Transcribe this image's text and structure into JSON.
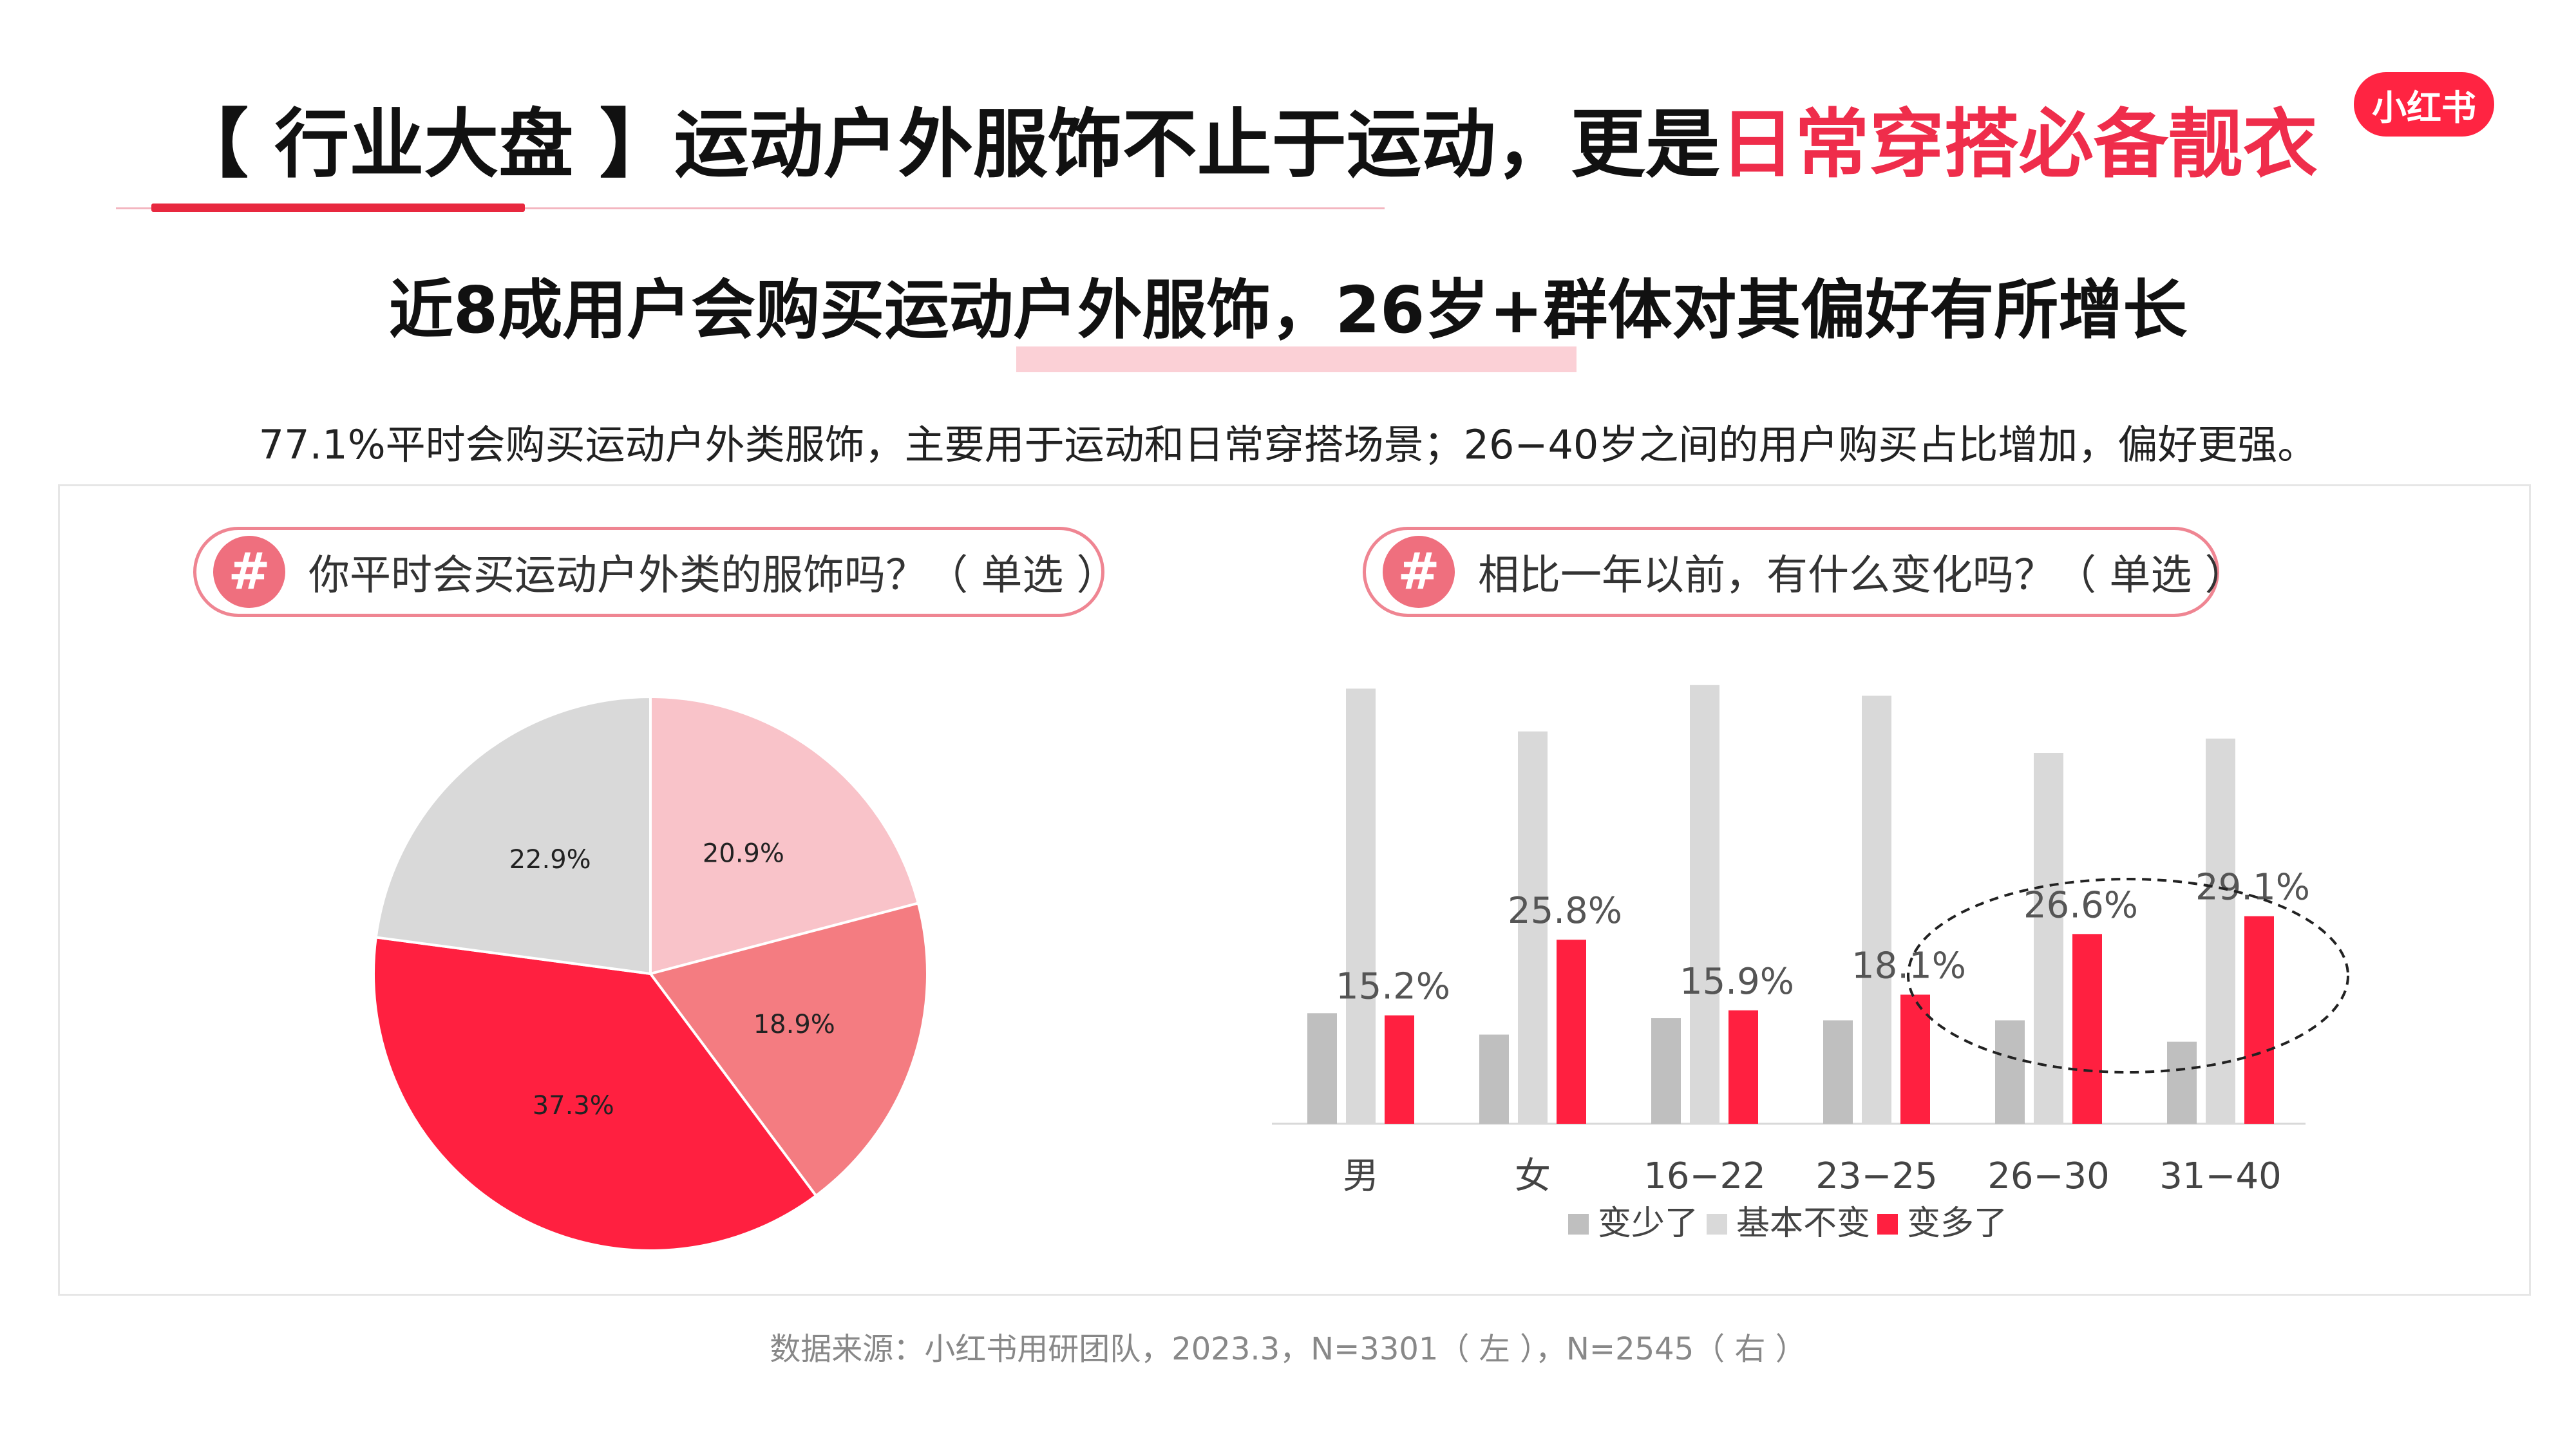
{
  "header": {
    "title_main": "【 行业大盘 】运动户外服饰不止于运动，更是",
    "title_accent": "日常穿搭必备靓衣",
    "logo_text": "小红书"
  },
  "subtitle": "近8成用户会购买运动户外服饰，26岁+群体对其偏好有所增长",
  "description": "77.1%平时会购买运动户外类服饰，主要用于运动和日常穿搭场景；26−40岁之间的用户购买占比增加，偏好更强。",
  "questions": {
    "left": {
      "hash": "#",
      "text": "你平时会买运动户外类的服饰吗？（ 单选 ）"
    },
    "right": {
      "hash": "#",
      "text": "相比一年以前，有什么变化吗？（ 单选 ）"
    }
  },
  "colors": {
    "accent": "#ef2d4b",
    "pie": [
      "#f9c3c9",
      "#f47c81",
      "#ff2040",
      "#d9d9d9"
    ],
    "bar_less": "#bfbfbf",
    "bar_same": "#d9d9d9",
    "bar_more": "#ff2040"
  },
  "chart_data": [
    {
      "type": "pie",
      "slices": [
        {
          "value": 20.9,
          "label": "20.9%"
        },
        {
          "value": 18.9,
          "label": "18.9%"
        },
        {
          "value": 37.3,
          "label": "37.3%"
        },
        {
          "value": 22.9,
          "label": "22.9%"
        }
      ]
    },
    {
      "type": "bar",
      "categories": [
        "男",
        "女",
        "16−22",
        "23−25",
        "26−30",
        "31−40"
      ],
      "series": [
        {
          "name": "变少了",
          "values": [
            15.5,
            12.5,
            14.8,
            14.5,
            14.5,
            11.5
          ]
        },
        {
          "name": "基本不变",
          "values": [
            61.0,
            55.0,
            61.5,
            60.0,
            52.0,
            54.0
          ]
        },
        {
          "name": "变多了",
          "values": [
            15.2,
            25.8,
            15.9,
            18.1,
            26.6,
            29.1
          ]
        }
      ],
      "labeled_series": "变多了",
      "data_labels": [
        "15.2%",
        "25.8%",
        "15.9%",
        "18.1%",
        "26.6%",
        "29.1%"
      ],
      "highlight_categories": [
        "26−30",
        "31−40"
      ],
      "ylim": [
        0,
        65
      ],
      "legend": "bottom"
    }
  ],
  "footer": {
    "source": "数据来源：小红书用研团队，2023.3，N=3301（ 左 ），N=2545（ 右 ）"
  }
}
